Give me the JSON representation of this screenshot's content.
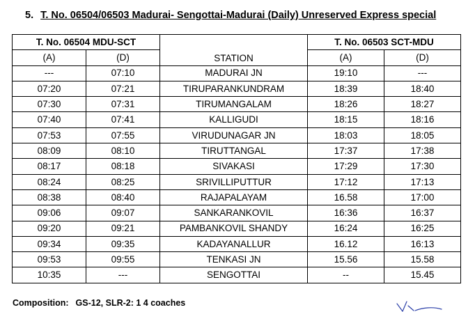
{
  "heading": {
    "number": "5.",
    "title": "T. No. 06504/06503 Madurai- Sengottai-Madurai (Daily) Unreserved Express special"
  },
  "table": {
    "left_train": "T. No. 06504 MDU-SCT",
    "right_train": "T. No. 06503 SCT-MDU",
    "station_header": "STATION",
    "arr_label": "(A)",
    "dep_label": "(D)",
    "rows": [
      {
        "a1": "---",
        "d1": "07:10",
        "station": "MADURAI JN",
        "a2": "19:10",
        "d2": "---"
      },
      {
        "a1": "07:20",
        "d1": "07:21",
        "station": "TIRUPARANKUNDRAM",
        "a2": "18:39",
        "d2": "18:40"
      },
      {
        "a1": "07:30",
        "d1": "07:31",
        "station": "TIRUMANGALAM",
        "a2": "18:26",
        "d2": "18:27"
      },
      {
        "a1": "07:40",
        "d1": "07:41",
        "station": "KALLIGUDI",
        "a2": "18:15",
        "d2": "18:16"
      },
      {
        "a1": "07:53",
        "d1": "07:55",
        "station": "VIRUDUNAGAR JN",
        "a2": "18:03",
        "d2": "18:05"
      },
      {
        "a1": "08:09",
        "d1": "08:10",
        "station": "TIRUTTANGAL",
        "a2": "17:37",
        "d2": "17:38"
      },
      {
        "a1": "08:17",
        "d1": "08:18",
        "station": "SIVAKASI",
        "a2": "17:29",
        "d2": "17:30"
      },
      {
        "a1": "08:24",
        "d1": "08:25",
        "station": "SRIVILLIPUTTUR",
        "a2": "17:12",
        "d2": "17:13"
      },
      {
        "a1": "08:38",
        "d1": "08:40",
        "station": "RAJAPALAYAM",
        "a2": "16.58",
        "d2": "17:00"
      },
      {
        "a1": "09:06",
        "d1": "09:07",
        "station": "SANKARANKOVIL",
        "a2": "16:36",
        "d2": "16:37"
      },
      {
        "a1": "09:20",
        "d1": "09:21",
        "station": "PAMBANKOVIL SHANDY",
        "a2": "16:24",
        "d2": "16:25"
      },
      {
        "a1": "09:34",
        "d1": "09:35",
        "station": "KADAYANALLUR",
        "a2": "16.12",
        "d2": "16:13"
      },
      {
        "a1": "09:53",
        "d1": "09:55",
        "station": "TENKASI JN",
        "a2": "15.56",
        "d2": "15.58"
      },
      {
        "a1": "10:35",
        "d1": "---",
        "station": "SENGOTTAI",
        "a2": "--",
        "d2": "15.45"
      }
    ]
  },
  "composition": {
    "label": "Composition:",
    "value": "GS-12, SLR-2: 1 4 coaches"
  },
  "signature_color": "#2b3fa8"
}
